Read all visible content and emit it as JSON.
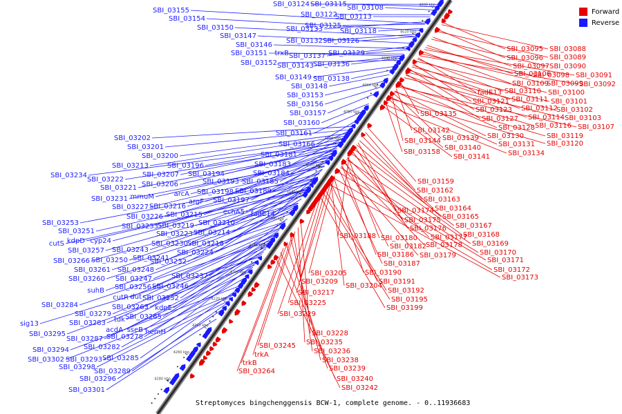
{
  "caption": "Streptomyces bingchenggensis BCW-1, complete genome. - 0..11936683",
  "legend": {
    "forward_label": "Forward",
    "reverse_label": "Reverse",
    "forward_color": "#e60000",
    "reverse_color": "#1a1aff"
  },
  "backbone": {
    "start_kbp": 3990,
    "end_kbp": 4300,
    "tick_labels": [
      "4000 kbp",
      "4020 kbp",
      "4040 kbp",
      "4060 kbp",
      "4080 kbp",
      "4100 kbp",
      "4120 kbp",
      "4140 kbp",
      "4160 kbp",
      "4180 kbp",
      "4200 kbp",
      "4220 kbp",
      "4240 kbp",
      "4260 kbp",
      "4280 kbp"
    ]
  },
  "reverse_labels": [
    {
      "text": "SBI_03155",
      "pos": 0.067
    },
    {
      "text": "SBI_03154",
      "pos": 0.083
    },
    {
      "text": "SBI_03150",
      "pos": 0.098
    },
    {
      "text": "SBI_03147",
      "pos": 0.114
    },
    {
      "text": "SBI_03146",
      "pos": 0.127
    },
    {
      "text": "SBI_03151",
      "pos": 0.14
    },
    {
      "text": "trxB",
      "pos": 0.145
    },
    {
      "text": "SBI_03152",
      "pos": 0.155
    },
    {
      "text": "SBI_03124",
      "pos": 0.02
    },
    {
      "text": "SBI_03115",
      "pos": 0.026
    },
    {
      "text": "SBI_03108",
      "pos": 0.034
    },
    {
      "text": "SBI_03122",
      "pos": 0.045
    },
    {
      "text": "SBI_03113",
      "pos": 0.05
    },
    {
      "text": "SBI_03133",
      "pos": 0.062
    },
    {
      "text": "SBI_03125",
      "pos": 0.068
    },
    {
      "text": "SBI_03118",
      "pos": 0.078
    },
    {
      "text": "SBI_03132",
      "pos": 0.092
    },
    {
      "text": "SBI_03126",
      "pos": 0.098
    },
    {
      "text": "SBI_03137",
      "pos": 0.122
    },
    {
      "text": "SBI_03129",
      "pos": 0.13
    },
    {
      "text": "SBI_03143",
      "pos": 0.145
    },
    {
      "text": "SBI_03136",
      "pos": 0.15
    },
    {
      "text": "SBI_03149",
      "pos": 0.17
    },
    {
      "text": "SBI_03138",
      "pos": 0.178
    },
    {
      "text": "SBI_03148",
      "pos": 0.19
    },
    {
      "text": "SBI_03153",
      "pos": 0.205
    },
    {
      "text": "SBI_03156",
      "pos": 0.22
    },
    {
      "text": "SBI_03157",
      "pos": 0.235
    },
    {
      "text": "SBI_03160",
      "pos": 0.26
    },
    {
      "text": "SBI_03161",
      "pos": 0.278
    },
    {
      "text": "SBI_03166",
      "pos": 0.3
    },
    {
      "text": "SBI_03181",
      "pos": 0.325
    },
    {
      "text": "SBI_03183",
      "pos": 0.34
    },
    {
      "text": "SBI_03184",
      "pos": 0.36
    },
    {
      "text": "SBI_03185",
      "pos": 0.375
    },
    {
      "text": "SBI_03189",
      "pos": 0.39
    },
    {
      "text": "SBI_03202",
      "pos": 0.315
    },
    {
      "text": "SBI_03201",
      "pos": 0.323
    },
    {
      "text": "SBI_03200",
      "pos": 0.332
    },
    {
      "text": "SBI_03213",
      "pos": 0.338
    },
    {
      "text": "SBI_03196",
      "pos": 0.345
    },
    {
      "text": "SBI_03207",
      "pos": 0.352
    },
    {
      "text": "SBI_03194",
      "pos": 0.36
    },
    {
      "text": "SBI_03206",
      "pos": 0.368
    },
    {
      "text": "SBI_03193",
      "pos": 0.372
    },
    {
      "text": "SBI_03234",
      "pos": 0.356
    },
    {
      "text": "SBI_03222",
      "pos": 0.362
    },
    {
      "text": "SBI_03221",
      "pos": 0.372
    },
    {
      "text": "arcA",
      "pos": 0.38
    },
    {
      "text": "SBI_03198",
      "pos": 0.385
    },
    {
      "text": "mmuM",
      "pos": 0.39
    },
    {
      "text": "SBI_03197",
      "pos": 0.397
    },
    {
      "text": "SBI_03231",
      "pos": 0.397
    },
    {
      "text": "argF",
      "pos": 0.403
    },
    {
      "text": "SBI_03227",
      "pos": 0.41
    },
    {
      "text": "SBI_03216",
      "pos": 0.412
    },
    {
      "text": "echA5",
      "pos": 0.418
    },
    {
      "text": "fadE14",
      "pos": 0.42
    },
    {
      "text": "SBI_03226",
      "pos": 0.428
    },
    {
      "text": "SBI_03215",
      "pos": 0.43
    },
    {
      "text": "SBI_03210",
      "pos": 0.44
    },
    {
      "text": "SBI_03233",
      "pos": 0.44
    },
    {
      "text": "SBI_03219",
      "pos": 0.445
    },
    {
      "text": "SBI_03214",
      "pos": 0.455
    },
    {
      "text": "SBI_03253",
      "pos": 0.44
    },
    {
      "text": "SBI_03251",
      "pos": 0.452
    },
    {
      "text": "SBI_03223",
      "pos": 0.46
    },
    {
      "text": "cutS",
      "pos": 0.468
    },
    {
      "text": "kdpD",
      "pos": 0.466
    },
    {
      "text": "cyp24",
      "pos": 0.468
    },
    {
      "text": "SBI_03230",
      "pos": 0.47
    },
    {
      "text": "SBI_03218",
      "pos": 0.475
    },
    {
      "text": "SBI_03257",
      "pos": 0.48
    },
    {
      "text": "SBI_03243",
      "pos": 0.482
    },
    {
      "text": "SBI_03224",
      "pos": 0.49
    },
    {
      "text": "SBI_03266",
      "pos": 0.5
    },
    {
      "text": "SBI_03250",
      "pos": 0.502
    },
    {
      "text": "SBI_03241",
      "pos": 0.505
    },
    {
      "text": "SBI_03232",
      "pos": 0.51
    },
    {
      "text": "SBI_03261",
      "pos": 0.52
    },
    {
      "text": "SBI_03248",
      "pos": 0.525
    },
    {
      "text": "SBI_03237",
      "pos": 0.538
    },
    {
      "text": "SBI_03260",
      "pos": 0.545
    },
    {
      "text": "SBI_03247",
      "pos": 0.548
    },
    {
      "text": "suhB",
      "pos": 0.56
    },
    {
      "text": "SBI_03256",
      "pos": 0.562
    },
    {
      "text": "SBI_03246",
      "pos": 0.566
    },
    {
      "text": "cutR",
      "pos": 0.575
    },
    {
      "text": "dut",
      "pos": 0.577
    },
    {
      "text": "SBI_03252",
      "pos": 0.58
    },
    {
      "text": "SBI_03284",
      "pos": 0.59
    },
    {
      "text": "SBI_03263",
      "pos": 0.593
    },
    {
      "text": "kdpE",
      "pos": 0.595
    },
    {
      "text": "SBI_03279",
      "pos": 0.605
    },
    {
      "text": "SBI_03265",
      "pos": 0.61
    },
    {
      "text": "tdk",
      "pos": 0.618
    },
    {
      "text": "SBI_03283",
      "pos": 0.624
    },
    {
      "text": "sig13",
      "pos": 0.63
    },
    {
      "text": "acdA",
      "pos": 0.638
    },
    {
      "text": "sseB",
      "pos": 0.64
    },
    {
      "text": "hemH",
      "pos": 0.645
    },
    {
      "text": "SBI_03295",
      "pos": 0.65
    },
    {
      "text": "SBI_03278",
      "pos": 0.655
    },
    {
      "text": "SBI_03287",
      "pos": 0.665
    },
    {
      "text": "SBI_03282",
      "pos": 0.68
    },
    {
      "text": "SBI_03294",
      "pos": 0.7
    },
    {
      "text": "SBI_03285",
      "pos": 0.71
    },
    {
      "text": "SBI_03302",
      "pos": 0.72
    },
    {
      "text": "SBI_03293",
      "pos": 0.722
    },
    {
      "text": "SBI_03298",
      "pos": 0.735
    },
    {
      "text": "SBI_03289",
      "pos": 0.74
    },
    {
      "text": "SBI_03296",
      "pos": 0.755
    },
    {
      "text": "SBI_03301",
      "pos": 0.78
    }
  ],
  "forward_labels": [
    {
      "text": "SBI_03095",
      "pos": 0.045
    },
    {
      "text": "SBI_03088",
      "pos": 0.05
    },
    {
      "text": "SBI_03096",
      "pos": 0.062
    },
    {
      "text": "SBI_03089",
      "pos": 0.066
    },
    {
      "text": "SBI_03097",
      "pos": 0.08
    },
    {
      "text": "SBI_03090",
      "pos": 0.085
    },
    {
      "text": "SBI_03106",
      "pos": 0.1
    },
    {
      "text": "SBI_03098",
      "pos": 0.105
    },
    {
      "text": "SBI_03091",
      "pos": 0.11
    },
    {
      "text": "SBI_03109",
      "pos": 0.115
    },
    {
      "text": "SBI_03099",
      "pos": 0.12
    },
    {
      "text": "SBI_03092",
      "pos": 0.125
    },
    {
      "text": "fadE13",
      "pos": 0.13
    },
    {
      "text": "SBI_03110",
      "pos": 0.133
    },
    {
      "text": "SBI_03100",
      "pos": 0.138
    },
    {
      "text": "SBI_03121",
      "pos": 0.145
    },
    {
      "text": "SBI_03111",
      "pos": 0.148
    },
    {
      "text": "SBI_03101",
      "pos": 0.152
    },
    {
      "text": "SBI_03123",
      "pos": 0.158
    },
    {
      "text": "SBI_03112",
      "pos": 0.16
    },
    {
      "text": "SBI_03102",
      "pos": 0.165
    },
    {
      "text": "SBI_03127",
      "pos": 0.17
    },
    {
      "text": "SBI_03114",
      "pos": 0.172
    },
    {
      "text": "SBI_03103",
      "pos": 0.178
    },
    {
      "text": "SBI_03135",
      "pos": 0.19
    },
    {
      "text": "SBI_03128",
      "pos": 0.195
    },
    {
      "text": "SBI_03116",
      "pos": 0.197
    },
    {
      "text": "SBI_03107",
      "pos": 0.2
    },
    {
      "text": "SBI_03142",
      "pos": 0.205
    },
    {
      "text": "SBI_03130",
      "pos": 0.21
    },
    {
      "text": "SBI_03119",
      "pos": 0.212
    },
    {
      "text": "SBI_03139",
      "pos": 0.215
    },
    {
      "text": "SBI_03144",
      "pos": 0.22
    },
    {
      "text": "SBI_03131",
      "pos": 0.225
    },
    {
      "text": "SBI_03120",
      "pos": 0.228
    },
    {
      "text": "SBI_03140",
      "pos": 0.23
    },
    {
      "text": "SBI_03158",
      "pos": 0.24
    },
    {
      "text": "SBI_03134",
      "pos": 0.243
    },
    {
      "text": "SBI_03141",
      "pos": 0.248
    },
    {
      "text": "SBI_03159",
      "pos": 0.3
    },
    {
      "text": "SBI_03162",
      "pos": 0.31
    },
    {
      "text": "SBI_03163",
      "pos": 0.32
    },
    {
      "text": "SBI_03164",
      "pos": 0.33
    },
    {
      "text": "SBI_03174",
      "pos": 0.335
    },
    {
      "text": "SBI_03165",
      "pos": 0.34
    },
    {
      "text": "SBI_03175",
      "pos": 0.345
    },
    {
      "text": "SBI_03167",
      "pos": 0.35
    },
    {
      "text": "SBI_03176",
      "pos": 0.355
    },
    {
      "text": "SBI_03168",
      "pos": 0.36
    },
    {
      "text": "SBI_03188",
      "pos": 0.365
    },
    {
      "text": "SBI_03180",
      "pos": 0.37
    },
    {
      "text": "SBI_03177",
      "pos": 0.372
    },
    {
      "text": "SBI_03169",
      "pos": 0.375
    },
    {
      "text": "SBI_03182",
      "pos": 0.38
    },
    {
      "text": "SBI_03178",
      "pos": 0.383
    },
    {
      "text": "SBI_03186",
      "pos": 0.39
    },
    {
      "text": "SBI_03179",
      "pos": 0.392
    },
    {
      "text": "SBI_03170",
      "pos": 0.395
    },
    {
      "text": "SBI_03187",
      "pos": 0.4
    },
    {
      "text": "SBI_03171",
      "pos": 0.405
    },
    {
      "text": "SBI_03205",
      "pos": 0.415
    },
    {
      "text": "SBI_03190",
      "pos": 0.418
    },
    {
      "text": "SBI_03172",
      "pos": 0.42
    },
    {
      "text": "SBI_03209",
      "pos": 0.425
    },
    {
      "text": "SBI_03204",
      "pos": 0.428
    },
    {
      "text": "SBI_03191",
      "pos": 0.43
    },
    {
      "text": "SBI_03173",
      "pos": 0.435
    },
    {
      "text": "SBI_03217",
      "pos": 0.445
    },
    {
      "text": "SBI_03192",
      "pos": 0.448
    },
    {
      "text": "SBI_03195",
      "pos": 0.455
    },
    {
      "text": "SBI_03225",
      "pos": 0.46
    },
    {
      "text": "SBI_03199",
      "pos": 0.465
    },
    {
      "text": "SBI_03229",
      "pos": 0.475
    },
    {
      "text": "SBI_03228",
      "pos": 0.53
    },
    {
      "text": "SBI_03235",
      "pos": 0.54
    },
    {
      "text": "SBI_03245",
      "pos": 0.55
    },
    {
      "text": "SBI_03236",
      "pos": 0.555
    },
    {
      "text": "trkA",
      "pos": 0.56
    },
    {
      "text": "SBI_03238",
      "pos": 0.565
    },
    {
      "text": "trkB",
      "pos": 0.575
    },
    {
      "text": "SBI_03239",
      "pos": 0.58
    },
    {
      "text": "SBI_03264",
      "pos": 0.59
    },
    {
      "text": "SBI_03240",
      "pos": 0.6
    },
    {
      "text": "SBI_03242",
      "pos": 0.615
    }
  ]
}
